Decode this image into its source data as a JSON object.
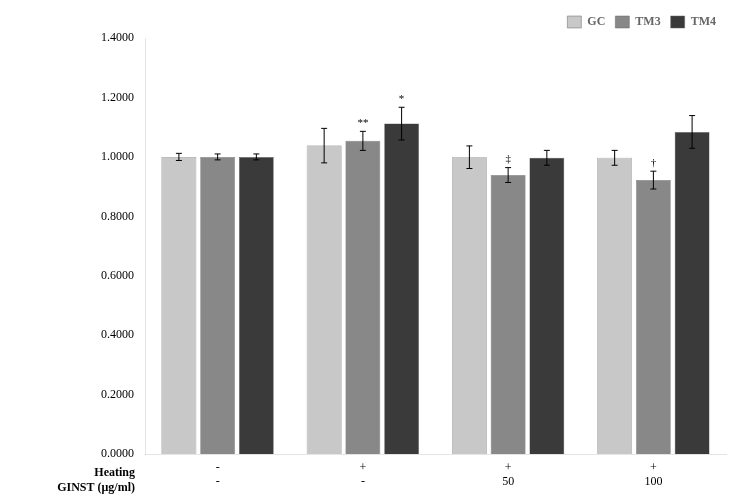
{
  "chart_data": {
    "type": "bar",
    "categories": [
      [
        "-",
        "-"
      ],
      [
        "+",
        "-"
      ],
      [
        "+",
        "50"
      ],
      [
        "+",
        "100"
      ]
    ],
    "category_rows": [
      "Heating",
      "GINST (μg/ml)"
    ],
    "series": [
      {
        "name": "GC",
        "color": "#c8c8c8",
        "values": [
          1.0,
          1.038,
          0.999,
          0.997
        ],
        "errors": [
          0.012,
          0.058,
          0.038,
          0.025
        ],
        "annotations": [
          null,
          null,
          null,
          null
        ]
      },
      {
        "name": "TM3",
        "color": "#888888",
        "values": [
          1.0,
          1.054,
          0.939,
          0.922
        ],
        "errors": [
          0.01,
          0.032,
          0.025,
          0.03
        ],
        "annotations": [
          null,
          "**",
          "‡",
          "†"
        ]
      },
      {
        "name": "TM4",
        "color": "#3a3a3a",
        "values": [
          1.0,
          1.112,
          0.997,
          1.084
        ],
        "errors": [
          0.01,
          0.055,
          0.025,
          0.055
        ],
        "annotations": [
          null,
          "*",
          null,
          null
        ]
      }
    ],
    "ylim": [
      0.0,
      1.4
    ],
    "yticks": [
      {
        "value": 0.0,
        "label": "0.0000"
      },
      {
        "value": 0.2,
        "label": "0.2000"
      },
      {
        "value": 0.4,
        "label": "0.4000"
      },
      {
        "value": 0.6,
        "label": "0.6000"
      },
      {
        "value": 0.8,
        "label": "0.8000"
      },
      {
        "value": 1.0,
        "label": "1.0000"
      },
      {
        "value": 1.2,
        "label": "1.2000"
      },
      {
        "value": 1.4,
        "label": "1.4000"
      }
    ],
    "grid": false,
    "legend": "upper right"
  }
}
